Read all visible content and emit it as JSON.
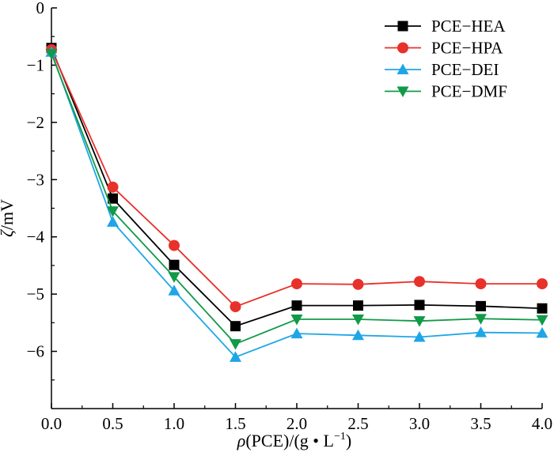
{
  "chart_data": {
    "type": "line",
    "x": [
      0.0,
      0.5,
      1.0,
      1.5,
      2.0,
      2.5,
      3.0,
      3.5,
      4.0
    ],
    "x_ticks": [
      "0.0",
      "0.5",
      "1.0",
      "1.5",
      "2.0",
      "2.5",
      "3.0",
      "3.5",
      "4.0"
    ],
    "y_ticks": [
      "0",
      "−1",
      "−2",
      "−3",
      "−4",
      "−5",
      "−6"
    ],
    "xlim": [
      0,
      4
    ],
    "ylim": [
      -7,
      0
    ],
    "xlabel_main": "ρ",
    "xlabel_rest": "(PCE)/(g • L",
    "xlabel_sup": "−1",
    "xlabel_close": ")",
    "ylabel_main": "ζ",
    "ylabel_rest": "/mV",
    "grid": false,
    "legend_position": "top-right",
    "series": [
      {
        "name": "PCE−HEA",
        "color": "#000000",
        "marker": "square",
        "values": [
          -0.7,
          -3.33,
          -4.49,
          -5.56,
          -5.2,
          -5.2,
          -5.19,
          -5.21,
          -5.25
        ]
      },
      {
        "name": "PCE−HPA",
        "color": "#e8312a",
        "marker": "circle",
        "values": [
          -0.73,
          -3.13,
          -4.15,
          -5.22,
          -4.82,
          -4.83,
          -4.78,
          -4.82,
          -4.82
        ]
      },
      {
        "name": "PCE−DEI",
        "color": "#1ea6e6",
        "marker": "triangle-up",
        "values": [
          -0.77,
          -3.74,
          -4.94,
          -6.1,
          -5.69,
          -5.72,
          -5.75,
          -5.67,
          -5.68
        ]
      },
      {
        "name": "PCE−DMF",
        "color": "#119a48",
        "marker": "triangle-down",
        "values": [
          -0.8,
          -3.55,
          -4.7,
          -5.87,
          -5.44,
          -5.44,
          -5.47,
          -5.43,
          -5.45
        ]
      }
    ]
  }
}
